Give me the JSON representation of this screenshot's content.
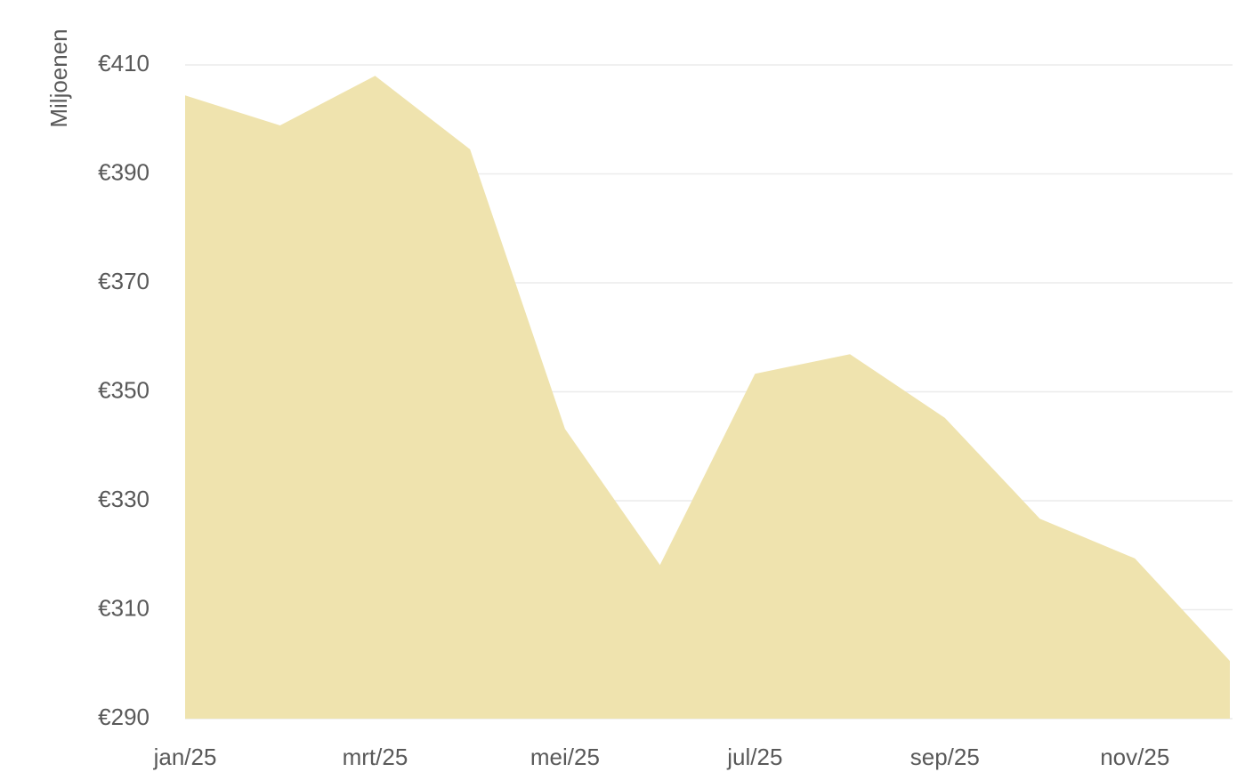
{
  "chart_data": {
    "type": "area",
    "y_label": "Miljoenen",
    "categories": [
      "jan/25",
      null,
      "mrt/25",
      null,
      "mei/25",
      null,
      "jul/25",
      null,
      "sep/25",
      null,
      "nov/25",
      null
    ],
    "values": [
      404.4,
      398.9,
      408,
      394.5,
      343.2,
      318.2,
      353.3,
      356.9,
      345.2,
      326.7,
      319.4,
      300.6
    ],
    "color": "#efe3ae",
    "ylim": [
      290,
      410
    ],
    "yticks": [
      {
        "value": 290,
        "label": "€290"
      },
      {
        "value": 310,
        "label": "€310"
      },
      {
        "value": 330,
        "label": "€330"
      },
      {
        "value": 350,
        "label": "€350"
      },
      {
        "value": 370,
        "label": "€370"
      },
      {
        "value": 390,
        "label": "€390"
      },
      {
        "value": 410,
        "label": "€410"
      }
    ],
    "grid": true
  }
}
